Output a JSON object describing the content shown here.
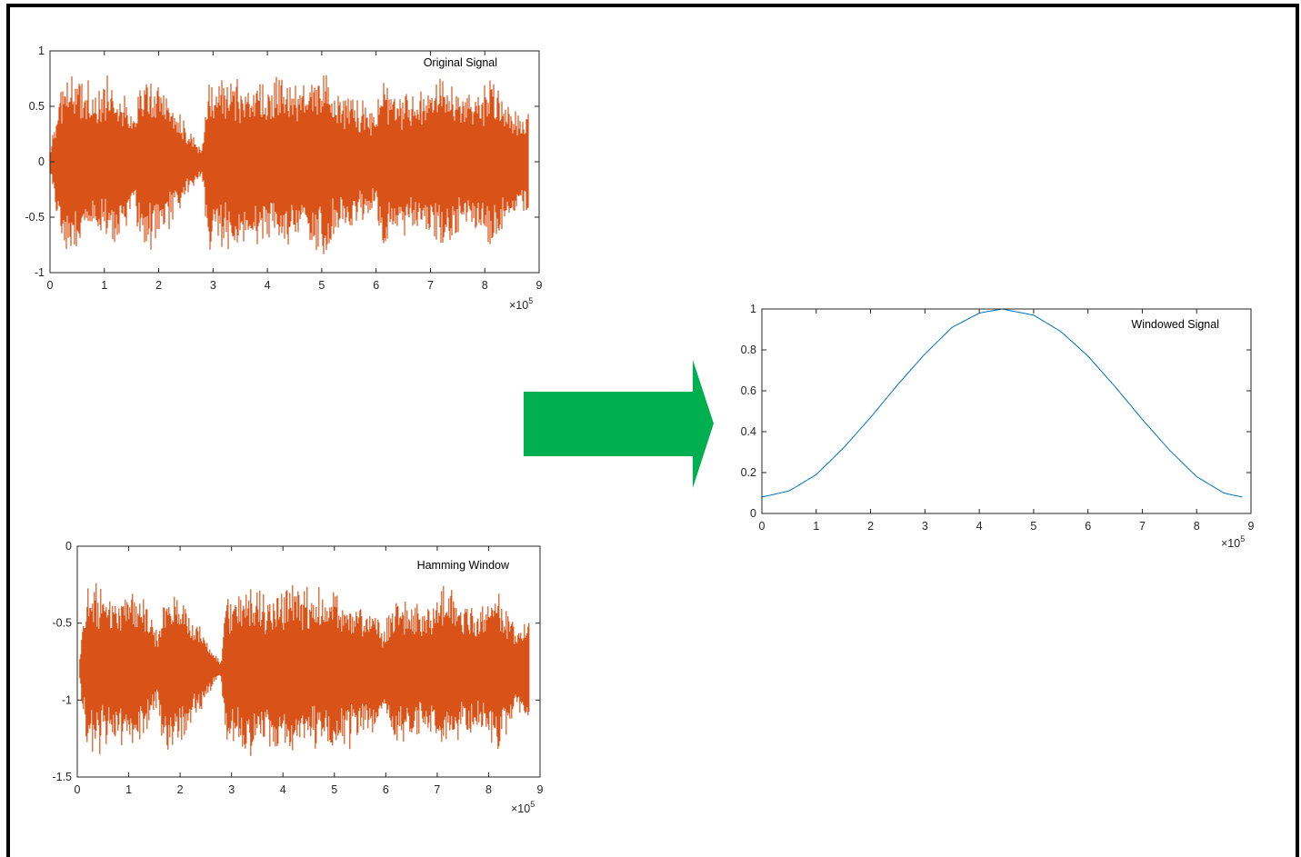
{
  "colors": {
    "signal": "#d95319",
    "window_curve": "#0072bd",
    "arrow": "#00b050",
    "axes": "#262626",
    "frame": "#000000"
  },
  "arrow": {
    "direction": "right"
  },
  "chart_data": [
    {
      "id": "original",
      "type": "line",
      "title": "Original Signal",
      "xlabel": "",
      "ylabel": "",
      "x_exponent_label": "×10",
      "x_exponent_power": "5",
      "xlim": [
        0,
        9
      ],
      "ylim": [
        -1,
        1
      ],
      "xticks": [
        0,
        1,
        2,
        3,
        4,
        5,
        6,
        7,
        8,
        9
      ],
      "xtick_labels": [
        "0",
        "1",
        "2",
        "3",
        "4",
        "5",
        "6",
        "7",
        "8",
        "9"
      ],
      "yticks": [
        -1,
        -0.5,
        0,
        0.5,
        1
      ],
      "ytick_labels": [
        "-1",
        "-0.5",
        "0",
        "0.5",
        "1"
      ],
      "grid": false,
      "legend": "none",
      "series": [
        {
          "style": "dense audio waveform",
          "center": 0,
          "x_range": [
            0,
            8.8
          ],
          "envelope_x": [
            0,
            0.2,
            0.3,
            0.5,
            0.8,
            1.0,
            1.3,
            1.55,
            1.65,
            1.9,
            2.1,
            2.3,
            2.6,
            2.8,
            2.9,
            3.0,
            3.4,
            3.8,
            4.2,
            4.6,
            5.0,
            5.4,
            5.8,
            6.0,
            6.1,
            6.3,
            6.8,
            7.2,
            7.6,
            8.0,
            8.2,
            8.5,
            8.8
          ],
          "envelope_upper": [
            0.1,
            0.75,
            0.85,
            0.8,
            0.75,
            0.8,
            0.75,
            0.4,
            0.8,
            0.78,
            0.72,
            0.55,
            0.3,
            0.12,
            0.85,
            0.75,
            0.82,
            0.75,
            0.8,
            0.78,
            0.82,
            0.7,
            0.55,
            0.45,
            0.8,
            0.7,
            0.65,
            0.8,
            0.65,
            0.72,
            0.8,
            0.55,
            0.5
          ],
          "envelope_lower": [
            -0.1,
            -0.8,
            -0.9,
            -0.85,
            -0.75,
            -0.8,
            -0.75,
            -0.45,
            -0.85,
            -0.8,
            -0.72,
            -0.55,
            -0.3,
            -0.12,
            -0.92,
            -0.75,
            -0.85,
            -0.78,
            -0.82,
            -0.78,
            -0.85,
            -0.7,
            -0.55,
            -0.45,
            -0.85,
            -0.72,
            -0.68,
            -0.82,
            -0.65,
            -0.75,
            -0.8,
            -0.55,
            -0.5
          ]
        }
      ]
    },
    {
      "id": "hamming",
      "type": "line",
      "title": "Hamming Window",
      "xlabel": "",
      "ylabel": "",
      "x_exponent_label": "×10",
      "x_exponent_power": "5",
      "xlim": [
        0,
        9
      ],
      "ylim": [
        -1.5,
        0
      ],
      "xticks": [
        0,
        1,
        2,
        3,
        4,
        5,
        6,
        7,
        8,
        9
      ],
      "xtick_labels": [
        "0",
        "1",
        "2",
        "3",
        "4",
        "5",
        "6",
        "7",
        "8",
        "9"
      ],
      "yticks": [
        -1.5,
        -1,
        -0.5,
        0
      ],
      "ytick_labels": [
        "-1.5",
        "-1",
        "-0.5",
        "0"
      ],
      "grid": false,
      "legend": "none",
      "series": [
        {
          "style": "dense audio waveform",
          "center": -0.8,
          "x_range": [
            0.05,
            8.8
          ],
          "envelope_x": [
            0.05,
            0.2,
            0.3,
            0.5,
            0.8,
            1.0,
            1.3,
            1.55,
            1.65,
            1.9,
            2.1,
            2.3,
            2.6,
            2.8,
            2.9,
            3.0,
            3.4,
            3.8,
            4.2,
            4.6,
            5.0,
            5.4,
            5.8,
            6.0,
            6.1,
            6.3,
            6.8,
            7.2,
            7.6,
            8.0,
            8.2,
            8.5,
            8.8
          ],
          "envelope_upper": [
            -0.7,
            -0.2,
            -0.18,
            -0.25,
            -0.3,
            -0.22,
            -0.3,
            -0.55,
            -0.3,
            -0.25,
            -0.3,
            -0.45,
            -0.65,
            -0.75,
            -0.2,
            -0.3,
            -0.25,
            -0.28,
            -0.22,
            -0.25,
            -0.25,
            -0.33,
            -0.42,
            -0.5,
            -0.3,
            -0.3,
            -0.4,
            -0.22,
            -0.4,
            -0.3,
            -0.2,
            -0.5,
            -0.45
          ],
          "envelope_lower": [
            -0.9,
            -1.4,
            -1.38,
            -1.35,
            -1.3,
            -1.38,
            -1.32,
            -1.05,
            -1.35,
            -1.3,
            -1.3,
            -1.15,
            -0.95,
            -0.85,
            -1.42,
            -1.35,
            -1.38,
            -1.35,
            -1.38,
            -1.35,
            -1.38,
            -1.3,
            -1.2,
            -1.1,
            -1.4,
            -1.3,
            -1.22,
            -1.35,
            -1.2,
            -1.3,
            -1.38,
            -1.1,
            -1.15
          ]
        }
      ]
    },
    {
      "id": "windowed",
      "type": "line",
      "title": "Windowed Signal",
      "xlabel": "",
      "ylabel": "",
      "x_exponent_label": "×10",
      "x_exponent_power": "5",
      "xlim": [
        0,
        9
      ],
      "ylim": [
        0,
        1
      ],
      "xticks": [
        0,
        1,
        2,
        3,
        4,
        5,
        6,
        7,
        8,
        9
      ],
      "xtick_labels": [
        "0",
        "1",
        "2",
        "3",
        "4",
        "5",
        "6",
        "7",
        "8",
        "9"
      ],
      "yticks": [
        0,
        0.2,
        0.4,
        0.6,
        0.8,
        1
      ],
      "ytick_labels": [
        "0",
        "0.2",
        "0.4",
        "0.6",
        "0.8",
        "1"
      ],
      "grid": false,
      "legend": "none",
      "series": [
        {
          "style": "smooth line",
          "x": [
            0,
            0.5,
            1.0,
            1.5,
            2.0,
            2.5,
            3.0,
            3.5,
            4.0,
            4.42,
            5.0,
            5.5,
            6.0,
            6.5,
            7.0,
            7.5,
            8.0,
            8.5,
            8.84
          ],
          "y": [
            0.08,
            0.11,
            0.19,
            0.32,
            0.47,
            0.63,
            0.78,
            0.91,
            0.98,
            1.0,
            0.97,
            0.89,
            0.77,
            0.62,
            0.46,
            0.31,
            0.18,
            0.1,
            0.08
          ]
        }
      ]
    }
  ]
}
